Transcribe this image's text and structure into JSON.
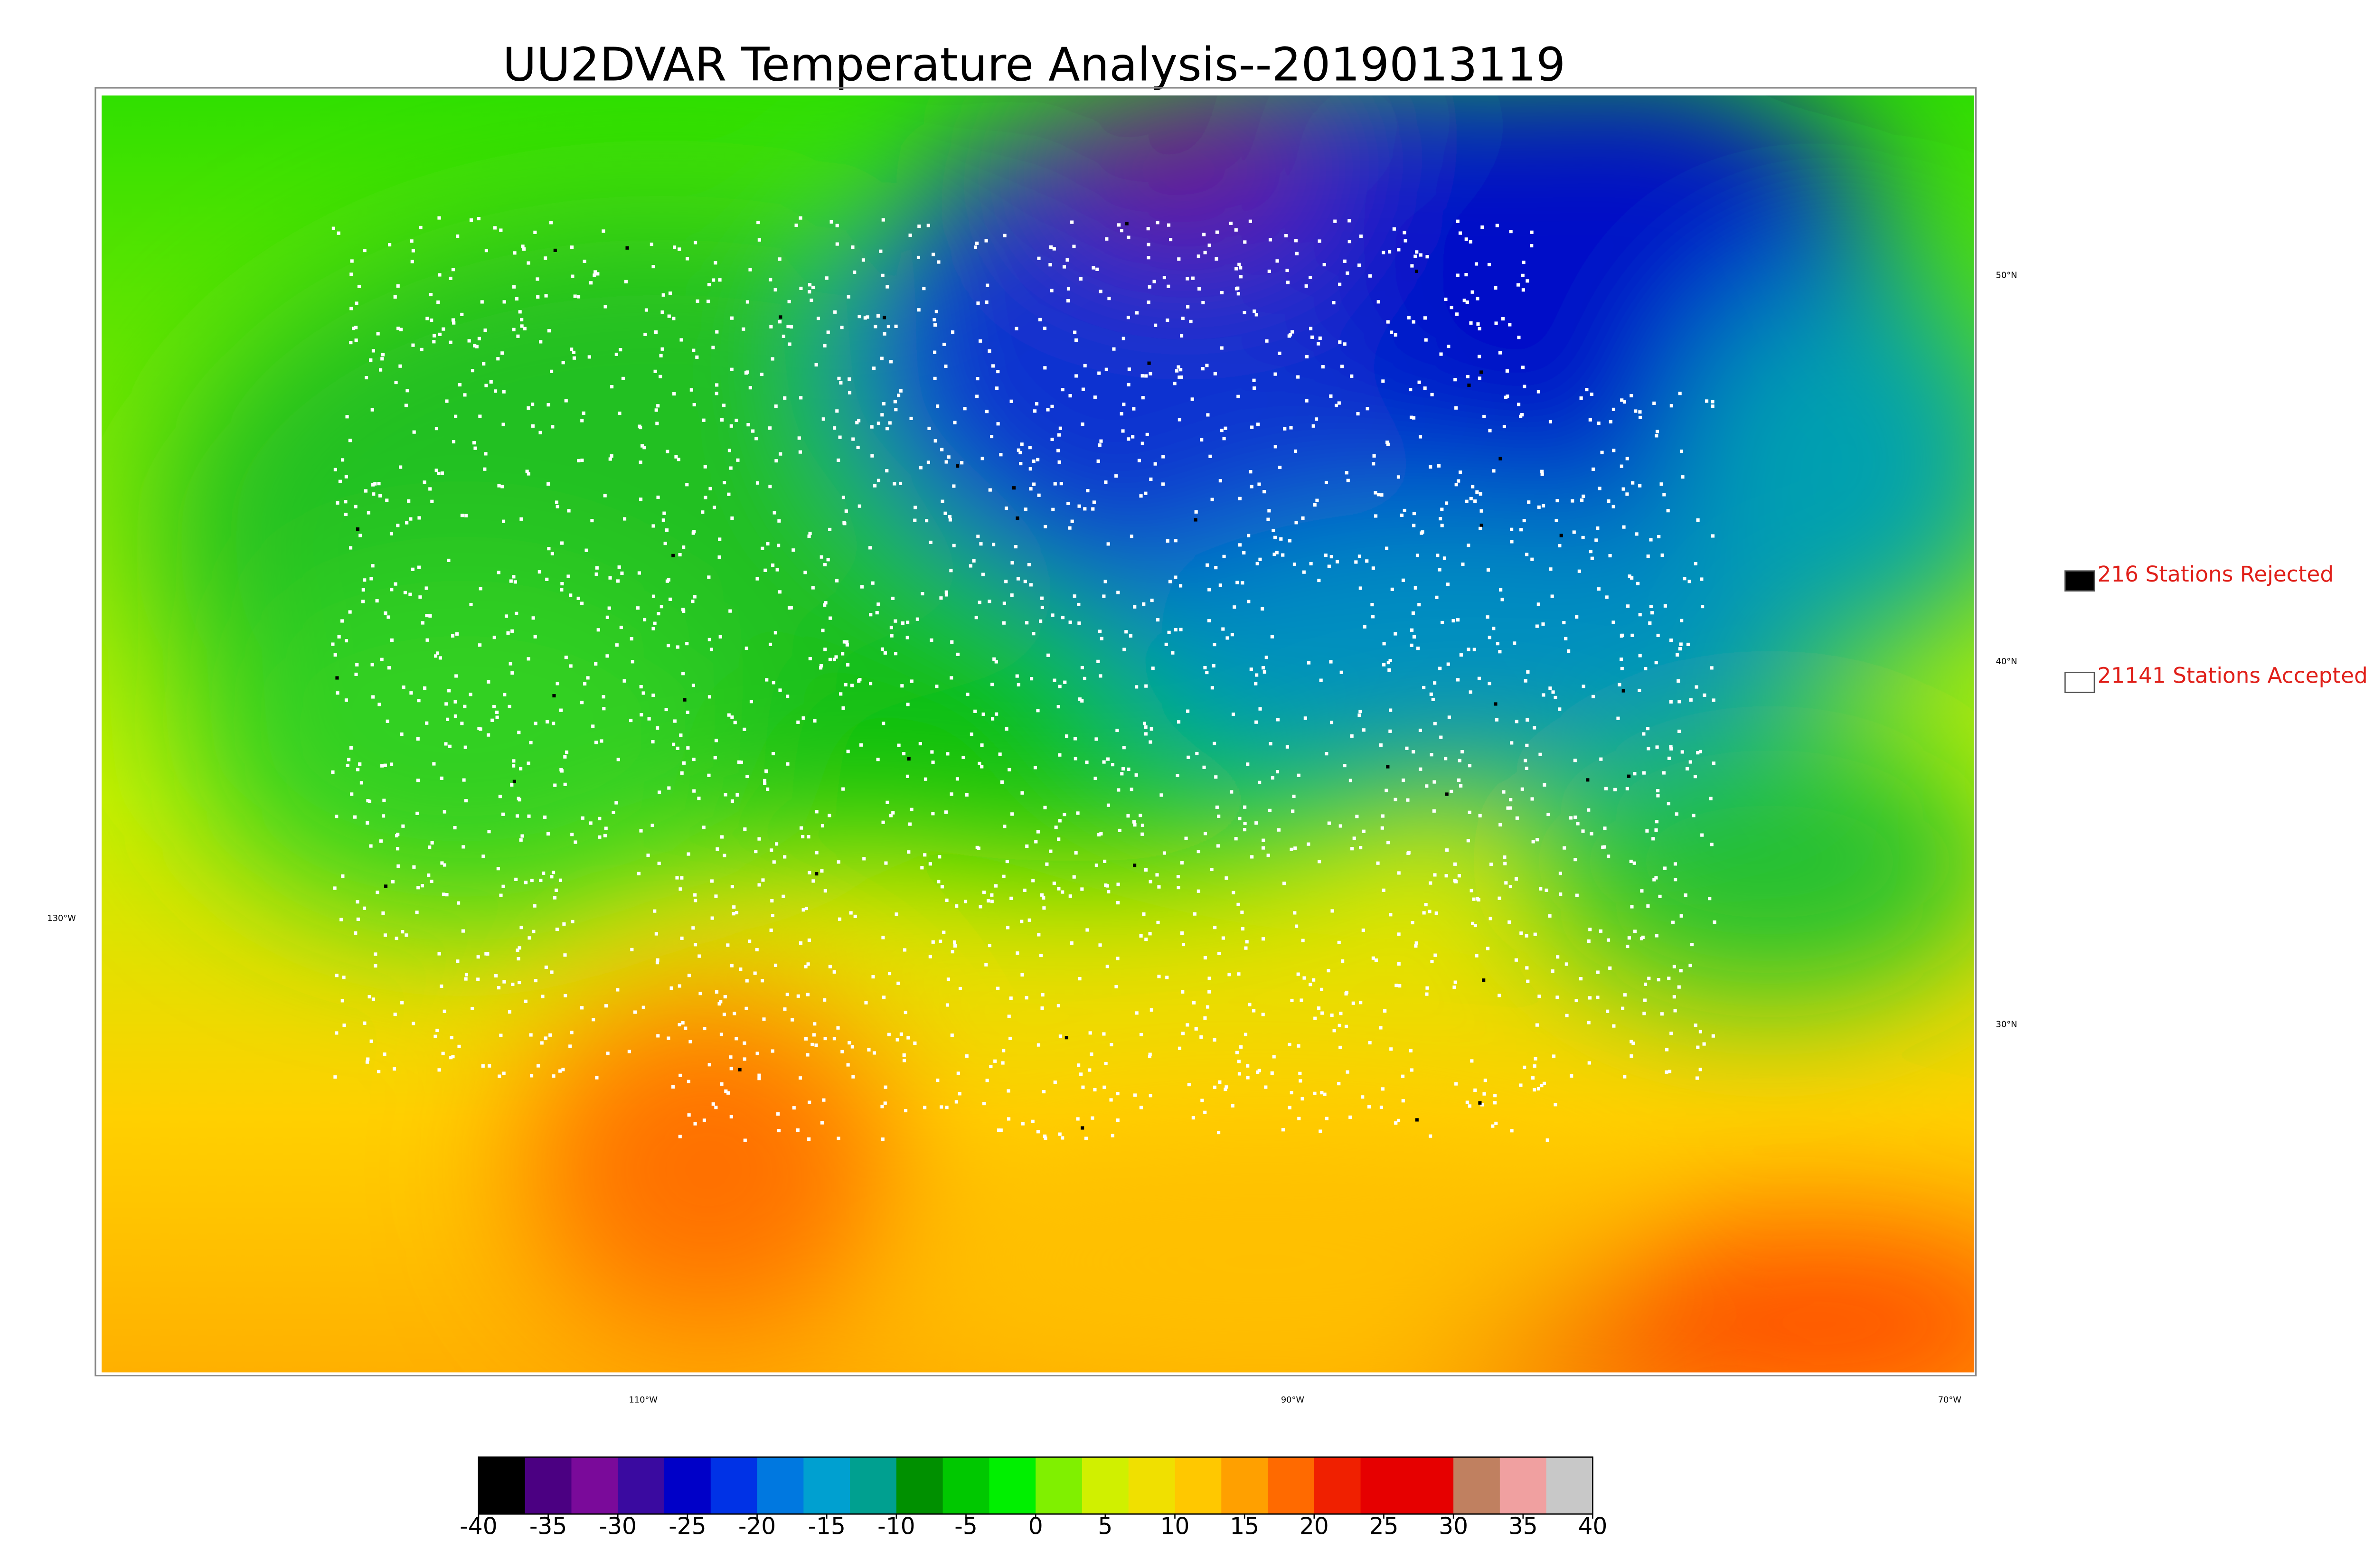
{
  "title": "UU2DVAR Temperature Analysis--2019013119",
  "legend": [
    {
      "label": "216 Stations Rejected",
      "color": "#000000"
    },
    {
      "label": "21141 Stations Accepted",
      "color": "#ffffff"
    }
  ],
  "map": {
    "lat_labels": [
      "50°N",
      "40°N",
      "30°N"
    ],
    "lon_labels": [
      "130°W",
      "110°W",
      "90°W",
      "70°W"
    ]
  },
  "colorbar": {
    "range": [
      -40,
      40
    ],
    "ticks": [
      -40,
      -35,
      -30,
      -25,
      -20,
      -15,
      -10,
      -5,
      0,
      5,
      10,
      15,
      20,
      25,
      30,
      35,
      40
    ],
    "colors": [
      "#000000",
      "#4b0082",
      "#7a0a9a",
      "#3a0aa0",
      "#0000c8",
      "#0032e6",
      "#0078e0",
      "#00a0d0",
      "#00a090",
      "#009000",
      "#00c800",
      "#00f000",
      "#80f000",
      "#d0f000",
      "#f0e000",
      "#ffc800",
      "#ffa000",
      "#ff6a00",
      "#f02000",
      "#e60000",
      "#e60000",
      "#c08060",
      "#f0a0a0",
      "#c8c8c8"
    ]
  }
}
